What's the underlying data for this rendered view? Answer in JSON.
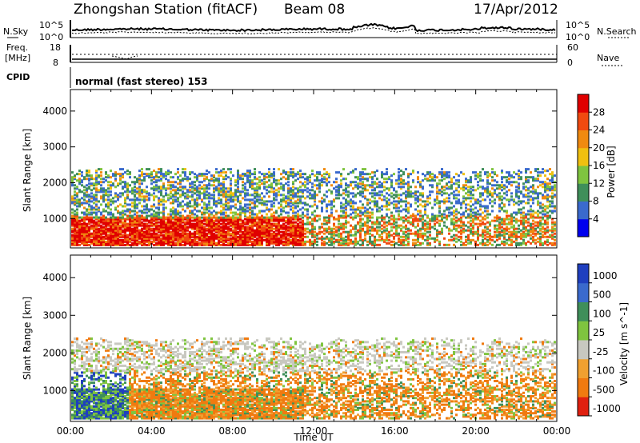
{
  "header": {
    "station": "Zhongshan Station (fitACF)",
    "beam": "Beam 08",
    "date": "17/Apr/2012",
    "cpid_label": "CPID",
    "cpid_text": "normal (fast stereo) 153"
  },
  "noise_panel": {
    "left_label": "N.Sky",
    "right_label": "N.Search",
    "left_ticks": [
      "10^5",
      "10^0"
    ],
    "right_ticks": [
      "10^5",
      "10^0"
    ]
  },
  "freq_panel": {
    "left_label_1": "Freq.",
    "left_label_2": "[MHz]",
    "right_label": "Nave",
    "left_ticks": [
      "18",
      "8"
    ],
    "right_ticks": [
      "60",
      "0"
    ]
  },
  "chart_data": [
    {
      "type": "heatmap",
      "parameter": "power",
      "ylabel": "Slant Range [km]",
      "ylim": [
        180,
        4600
      ],
      "y_ticks": [
        "1000",
        "2000",
        "3000",
        "4000"
      ],
      "colorbar": {
        "label": "Power [dB]",
        "range": [
          0,
          32
        ],
        "ticks": [
          "28",
          "24",
          "20",
          "16",
          "12",
          "8",
          "4"
        ],
        "colors": [
          "#0000ee",
          "#3a6acd",
          "#3f8f5a",
          "#7fc43f",
          "#f0c010",
          "#f08a10",
          "#f04a10",
          "#e00000"
        ]
      },
      "description_series": [
        {
          "time_range": [
            "00:00",
            "11:30"
          ],
          "range_km": [
            300,
            1000
          ],
          "level_db": "20-32"
        },
        {
          "time_range": [
            "00:00",
            "24:00"
          ],
          "range_km": [
            1000,
            2500
          ],
          "level_db": "4-16"
        },
        {
          "time_range": [
            "12:00",
            "24:00"
          ],
          "range_km": [
            300,
            1200
          ],
          "level_db": "12-28"
        }
      ]
    },
    {
      "type": "heatmap",
      "parameter": "velocity",
      "ylabel": "Slant Range [km]",
      "ylim": [
        180,
        4600
      ],
      "y_ticks": [
        "1000",
        "2000",
        "3000",
        "4000"
      ],
      "xlabel": "Time UT",
      "x_ticks": [
        "00:00",
        "04:00",
        "08:00",
        "12:00",
        "16:00",
        "20:00",
        "00:00"
      ],
      "colorbar": {
        "label": "Velocity [m s^-1]",
        "ticks": [
          "1000",
          "500",
          "100",
          "25",
          "-25",
          "-100",
          "-500",
          "-1000"
        ],
        "colors": [
          "#1f3fbf",
          "#3a6acd",
          "#3f8f5a",
          "#7fc43f",
          "#c8c8c0",
          "#f0a030",
          "#f07a10",
          "#e02010"
        ]
      }
    }
  ]
}
